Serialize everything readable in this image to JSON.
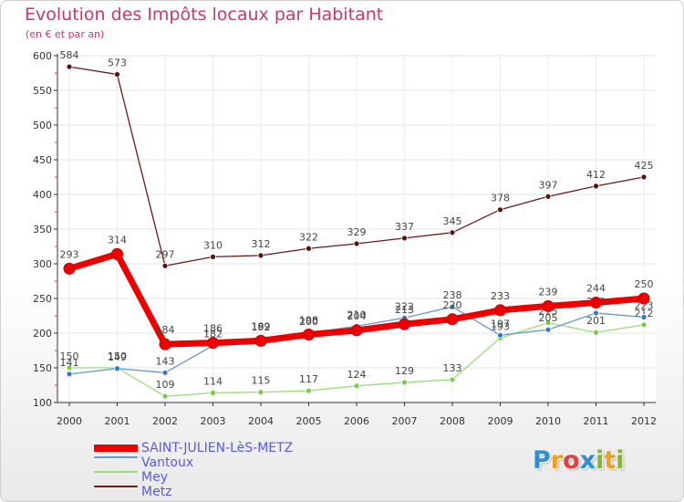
{
  "header": {
    "title": "Evolution des Impôts locaux par Habitant",
    "subtitle": "(en € et par an)"
  },
  "logo": {
    "text": "Proxiti",
    "letters": [
      {
        "ch": "P",
        "color": "#2f8fd0"
      },
      {
        "ch": "r",
        "color": "#f0a020"
      },
      {
        "ch": "o",
        "color": "#e04040"
      },
      {
        "ch": "x",
        "color": "#2f8fd0"
      },
      {
        "ch": "i",
        "color": "#80b830"
      },
      {
        "ch": "t",
        "color": "#f0a020"
      },
      {
        "ch": "i",
        "color": "#80b830"
      }
    ]
  },
  "chart_data": {
    "type": "line",
    "title": "Evolution des Impôts locaux par Habitant",
    "subtitle": "(en € et par an)",
    "xlabel": "",
    "ylabel": "",
    "x": [
      "2000",
      "2001",
      "2002",
      "2003",
      "2004",
      "2005",
      "2006",
      "2007",
      "2008",
      "2009",
      "2010",
      "2011",
      "2012"
    ],
    "ylim": [
      100,
      600
    ],
    "yticks": [
      "100",
      "150",
      "200",
      "250",
      "300",
      "350",
      "400",
      "450",
      "500",
      "550",
      "600"
    ],
    "legend_position": "bottom-left",
    "series": [
      {
        "name": "Metz",
        "color": "#6b1a1a",
        "point_color": "#5a1010",
        "values": [
          584,
          573,
          297,
          310,
          312,
          322,
          329,
          337,
          345,
          378,
          397,
          412,
          425
        ],
        "labels": [
          "584",
          "573",
          "297",
          "310",
          "312",
          "322",
          "329",
          "337",
          "345",
          "378",
          "397",
          "412",
          "425"
        ]
      },
      {
        "name": "Mey",
        "color": "#99dd77",
        "point_color": "#77cc44",
        "values": [
          150,
          150,
          109,
          114,
          115,
          117,
          124,
          129,
          133,
          193,
          215,
          201,
          212
        ],
        "labels": [
          "150",
          "150",
          "109",
          "114",
          "115",
          "117",
          "124",
          "129",
          "133",
          "193",
          "215",
          "201",
          "212"
        ]
      },
      {
        "name": "Vantoux",
        "color": "#6699cc",
        "point_color": "#3377cc",
        "values": [
          141,
          149,
          143,
          182,
          192,
          200,
          210,
          222,
          238,
          197,
          205,
          229,
          223
        ],
        "labels": [
          "141",
          "149",
          "143",
          "182",
          "192",
          "200",
          "210",
          "222",
          "238",
          "197",
          "205",
          "229",
          "223"
        ]
      },
      {
        "name": "SAINT-JULIEN-LèS-METZ",
        "color": "#ee0000",
        "point_color": "#ee0000",
        "values": [
          293,
          314,
          184,
          186,
          189,
          198,
          204,
          213,
          220,
          233,
          239,
          244,
          250
        ],
        "labels": [
          "293",
          "314",
          "184",
          "186",
          "189",
          "198",
          "204",
          "213",
          "220",
          "233",
          "239",
          "244",
          "250"
        ]
      }
    ]
  },
  "legend": [
    {
      "label": "SAINT-JULIEN-LèS-METZ",
      "color": "#ee0000",
      "weight": "thick"
    },
    {
      "label": "Vantoux",
      "color": "#6699cc",
      "weight": "thin"
    },
    {
      "label": "Mey",
      "color": "#99dd77",
      "weight": "thin"
    },
    {
      "label": "Metz",
      "color": "#6b1a1a",
      "weight": "thin"
    }
  ]
}
